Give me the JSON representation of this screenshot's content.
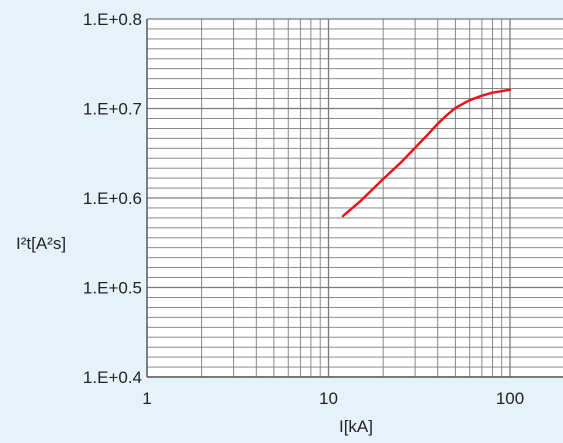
{
  "chart_data": {
    "type": "line",
    "xscale": "log",
    "yscale": "log",
    "xlim": [
      1,
      200
    ],
    "ylim": [
      2.512,
      6.31
    ],
    "grid": true,
    "xlabel": "I[kA]",
    "ylabel": "I²t[A²s]",
    "x_ticks": [
      {
        "value": 1,
        "label": "1"
      },
      {
        "value": 10,
        "label": "10"
      },
      {
        "value": 100,
        "label": "100"
      }
    ],
    "y_ticks": [
      {
        "value": 2.512,
        "label": "1.E+0.4"
      },
      {
        "value": 3.162,
        "label": "1.E+0.5"
      },
      {
        "value": 3.981,
        "label": "1.E+0.6"
      },
      {
        "value": 5.012,
        "label": "1.E+0.7"
      },
      {
        "value": 6.31,
        "label": "1.E+0.8"
      }
    ],
    "series": [
      {
        "color": "#e8141b",
        "x": [
          12,
          15,
          20,
          25,
          30,
          35,
          40,
          45,
          50,
          60,
          70,
          80,
          90,
          100
        ],
        "y": [
          3.8,
          3.95,
          4.18,
          4.36,
          4.53,
          4.68,
          4.82,
          4.93,
          5.02,
          5.12,
          5.18,
          5.22,
          5.24,
          5.26
        ]
      }
    ]
  },
  "colors": {
    "background": "#e6f2fa",
    "plot_area": "#ffffff",
    "grid": "#7a7a7a",
    "frame": "#5a5a5a",
    "series": "#e8141b"
  }
}
